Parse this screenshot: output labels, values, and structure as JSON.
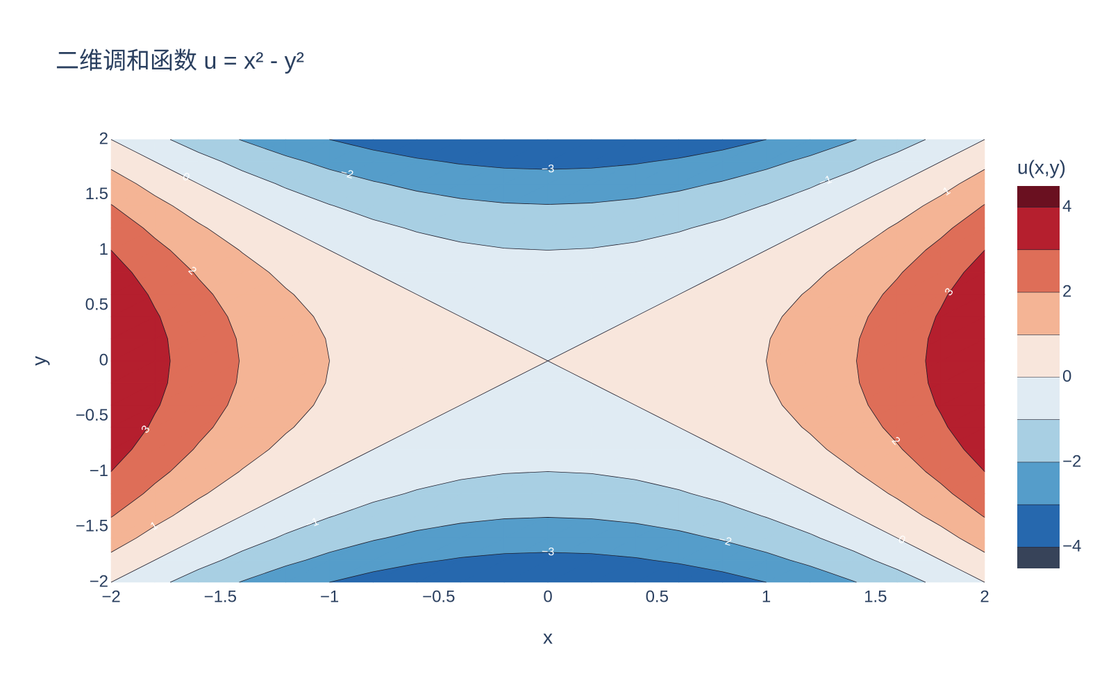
{
  "chart_data": {
    "type": "contour",
    "title": "二维调和函数 u = x² - y²",
    "x_label": "x",
    "y_label": "y",
    "colorbar_title": "u(x,y)",
    "xlim": [
      -2,
      2
    ],
    "ylim": [
      -2,
      2
    ],
    "xticks": [
      {
        "value": -2,
        "label": "−2"
      },
      {
        "value": -1.5,
        "label": "−1.5"
      },
      {
        "value": -1,
        "label": "−1"
      },
      {
        "value": -0.5,
        "label": "−0.5"
      },
      0,
      0.5,
      1,
      1.5,
      2
    ],
    "yticks": [
      {
        "value": -2,
        "label": "−2"
      },
      {
        "value": -1.5,
        "label": "−1.5"
      },
      {
        "value": -1,
        "label": "−1"
      },
      {
        "value": -0.5,
        "label": "−0.5"
      },
      0,
      0.5,
      1,
      1.5,
      2
    ],
    "x": [
      -2,
      -1.8,
      -1.6,
      -1.4,
      -1.2,
      -1,
      -0.8,
      -0.6,
      -0.4,
      -0.2,
      0,
      0.2,
      0.4,
      0.6,
      0.8,
      1,
      1.2,
      1.4,
      1.6,
      1.8,
      2
    ],
    "y": [
      -2,
      -1.8,
      -1.6,
      -1.4,
      -1.2,
      -1,
      -0.8,
      -0.6,
      -0.4,
      -0.2,
      0,
      0.2,
      0.4,
      0.6,
      0.8,
      1,
      1.2,
      1.4,
      1.6,
      1.8,
      2
    ],
    "z": [
      [
        0,
        -0.76,
        -1.44,
        -2.04,
        -2.56,
        -3,
        -3.36,
        -3.64,
        -3.84,
        -3.96,
        -4,
        -3.96,
        -3.84,
        -3.64,
        -3.36,
        -3,
        -2.56,
        -2.04,
        -1.44,
        -0.76,
        0
      ],
      [
        0.76,
        0,
        -0.68,
        -1.28,
        -1.8,
        -2.24,
        -2.6,
        -2.88,
        -3.08,
        -3.2,
        -3.24,
        -3.2,
        -3.08,
        -2.88,
        -2.6,
        -2.24,
        -1.8,
        -1.28,
        -0.68,
        0,
        0.76
      ],
      [
        1.44,
        0.68,
        0,
        -0.6,
        -1.12,
        -1.56,
        -1.92,
        -2.2,
        -2.4,
        -2.52,
        -2.56,
        -2.52,
        -2.4,
        -2.2,
        -1.92,
        -1.56,
        -1.12,
        -0.6,
        0,
        0.68,
        1.44
      ],
      [
        2.04,
        1.28,
        0.6,
        0,
        -0.52,
        -0.96,
        -1.32,
        -1.6,
        -1.8,
        -1.92,
        -1.96,
        -1.92,
        -1.8,
        -1.6,
        -1.32,
        -0.96,
        -0.52,
        0,
        0.6,
        1.28,
        2.04
      ],
      [
        2.56,
        1.8,
        1.12,
        0.52,
        0,
        -0.44,
        -0.8,
        -1.08,
        -1.28,
        -1.4,
        -1.44,
        -1.4,
        -1.28,
        -1.08,
        -0.8,
        -0.44,
        0,
        0.52,
        1.12,
        1.8,
        2.56
      ],
      [
        3,
        2.24,
        1.56,
        0.96,
        0.44,
        0,
        -0.36,
        -0.64,
        -0.84,
        -0.96,
        -1,
        -0.96,
        -0.84,
        -0.64,
        -0.36,
        0,
        0.44,
        0.96,
        1.56,
        2.24,
        3
      ],
      [
        3.36,
        2.6,
        1.92,
        1.32,
        0.8,
        0.36,
        0,
        -0.28,
        -0.48,
        -0.6,
        -0.64,
        -0.6,
        -0.48,
        -0.28,
        0,
        0.36,
        0.8,
        1.32,
        1.92,
        2.6,
        3.36
      ],
      [
        3.64,
        2.88,
        2.2,
        1.6,
        1.08,
        0.64,
        0.28,
        0,
        -0.2,
        -0.32,
        -0.36,
        -0.32,
        -0.2,
        0,
        0.28,
        0.64,
        1.08,
        1.6,
        2.2,
        2.88,
        3.64
      ],
      [
        3.84,
        3.08,
        2.4,
        1.8,
        1.28,
        0.84,
        0.48,
        0.2,
        0,
        -0.12,
        -0.16,
        -0.12,
        0,
        0.2,
        0.48,
        0.84,
        1.28,
        1.8,
        2.4,
        3.08,
        3.84
      ],
      [
        3.96,
        3.2,
        2.52,
        1.92,
        1.4,
        0.96,
        0.6,
        0.32,
        0.12,
        0,
        -0.04,
        0,
        0.12,
        0.32,
        0.6,
        0.96,
        1.4,
        1.92,
        2.52,
        3.2,
        3.96
      ],
      [
        4,
        3.24,
        2.56,
        1.96,
        1.44,
        1,
        0.64,
        0.36,
        0.16,
        0.04,
        0,
        0.04,
        0.16,
        0.36,
        0.64,
        1,
        1.44,
        1.96,
        2.56,
        3.24,
        4
      ],
      [
        3.96,
        3.2,
        2.52,
        1.92,
        1.4,
        0.96,
        0.6,
        0.32,
        0.12,
        0,
        -0.04,
        0,
        0.12,
        0.32,
        0.6,
        0.96,
        1.4,
        1.92,
        2.52,
        3.2,
        3.96
      ],
      [
        3.84,
        3.08,
        2.4,
        1.8,
        1.28,
        0.84,
        0.48,
        0.2,
        0,
        -0.12,
        -0.16,
        -0.12,
        0,
        0.2,
        0.48,
        0.84,
        1.28,
        1.8,
        2.4,
        3.08,
        3.84
      ],
      [
        3.64,
        2.88,
        2.2,
        1.6,
        1.08,
        0.64,
        0.28,
        0,
        -0.2,
        -0.32,
        -0.36,
        -0.32,
        -0.2,
        0,
        0.28,
        0.64,
        1.08,
        1.6,
        2.2,
        2.88,
        3.64
      ],
      [
        3.36,
        2.6,
        1.92,
        1.32,
        0.8,
        0.36,
        0,
        -0.28,
        -0.48,
        -0.6,
        -0.64,
        -0.6,
        -0.48,
        -0.28,
        0,
        0.36,
        0.8,
        1.32,
        1.92,
        2.6,
        3.36
      ],
      [
        3,
        2.24,
        1.56,
        0.96,
        0.44,
        0,
        -0.36,
        -0.64,
        -0.84,
        -0.96,
        -1,
        -0.96,
        -0.84,
        -0.64,
        -0.36,
        0,
        0.44,
        0.96,
        1.56,
        2.24,
        3
      ],
      [
        2.56,
        1.8,
        1.12,
        0.52,
        0,
        -0.44,
        -0.8,
        -1.08,
        -1.28,
        -1.4,
        -1.44,
        -1.4,
        -1.28,
        -1.08,
        -0.8,
        -0.44,
        0,
        0.52,
        1.12,
        1.8,
        2.56
      ],
      [
        2.04,
        1.28,
        0.6,
        0,
        -0.52,
        -0.96,
        -1.32,
        -1.6,
        -1.8,
        -1.92,
        -1.96,
        -1.92,
        -1.8,
        -1.6,
        -1.32,
        -0.96,
        -0.52,
        0,
        0.6,
        1.28,
        2.04
      ],
      [
        1.44,
        0.68,
        0,
        -0.6,
        -1.12,
        -1.56,
        -1.92,
        -2.2,
        -2.4,
        -2.52,
        -2.56,
        -2.52,
        -2.4,
        -2.2,
        -1.92,
        -1.56,
        -1.12,
        -0.6,
        0,
        0.68,
        1.44
      ],
      [
        0.76,
        0,
        -0.68,
        -1.28,
        -1.8,
        -2.24,
        -2.6,
        -2.88,
        -3.08,
        -3.2,
        -3.24,
        -3.2,
        -3.08,
        -2.88,
        -2.6,
        -2.24,
        -1.8,
        -1.28,
        -0.68,
        0,
        0.76
      ],
      [
        0,
        -0.76,
        -1.44,
        -2.04,
        -2.56,
        -3,
        -3.36,
        -3.64,
        -3.84,
        -3.96,
        -4,
        -3.96,
        -3.84,
        -3.64,
        -3.36,
        -3,
        -2.56,
        -2.04,
        -1.44,
        -0.76,
        0
      ]
    ],
    "levels": [
      -4,
      -3,
      -2,
      -1,
      0,
      1,
      2,
      3,
      4
    ],
    "level_labels": [
      null,
      "−3",
      "−2",
      "−1",
      "0",
      "1",
      "2",
      "3",
      null
    ],
    "colors": [
      "#374359",
      "#2668ae",
      "#559dca",
      "#a8cfe3",
      "#e0ebf3",
      "#f8e6dc",
      "#f4b495",
      "#de6e58",
      "#b51f2e",
      "#6a1020"
    ],
    "colorbar_lim": [
      -4.5,
      4.5
    ],
    "colorbar_ticks": [
      {
        "value": -4,
        "label": "−4"
      },
      {
        "value": -2,
        "label": "−2"
      },
      0,
      2,
      4
    ]
  }
}
